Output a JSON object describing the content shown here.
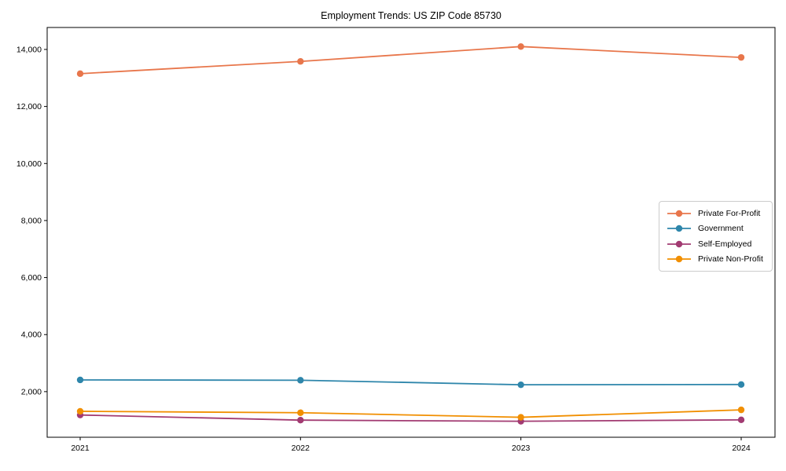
{
  "chart_data": {
    "type": "line",
    "title": "Employment Trends: US ZIP Code 85730",
    "xlabel": "",
    "ylabel": "",
    "categories": [
      "2021",
      "2022",
      "2023",
      "2024"
    ],
    "series": [
      {
        "name": "Private For-Profit",
        "color": "#E8764B",
        "values": [
          13150,
          13580,
          14100,
          13720
        ]
      },
      {
        "name": "Government",
        "color": "#2E86AB",
        "values": [
          2410,
          2400,
          2240,
          2250
        ]
      },
      {
        "name": "Self-Employed",
        "color": "#A23B72",
        "values": [
          1180,
          1000,
          960,
          1010
        ]
      },
      {
        "name": "Private Non-Profit",
        "color": "#F18F01",
        "values": [
          1310,
          1260,
          1100,
          1360
        ]
      }
    ],
    "yticks": [
      2000,
      4000,
      6000,
      8000,
      10000,
      12000,
      14000
    ],
    "ytick_labels": [
      "2,000",
      "4,000",
      "6,000",
      "8,000",
      "10,000",
      "12,000",
      "14,000"
    ],
    "ylim": [
      400,
      14770
    ],
    "grid": false,
    "marker": "circle",
    "legend_position": "right-middle",
    "axis_color": "#000000",
    "legend_border_color": "#cccccc"
  }
}
